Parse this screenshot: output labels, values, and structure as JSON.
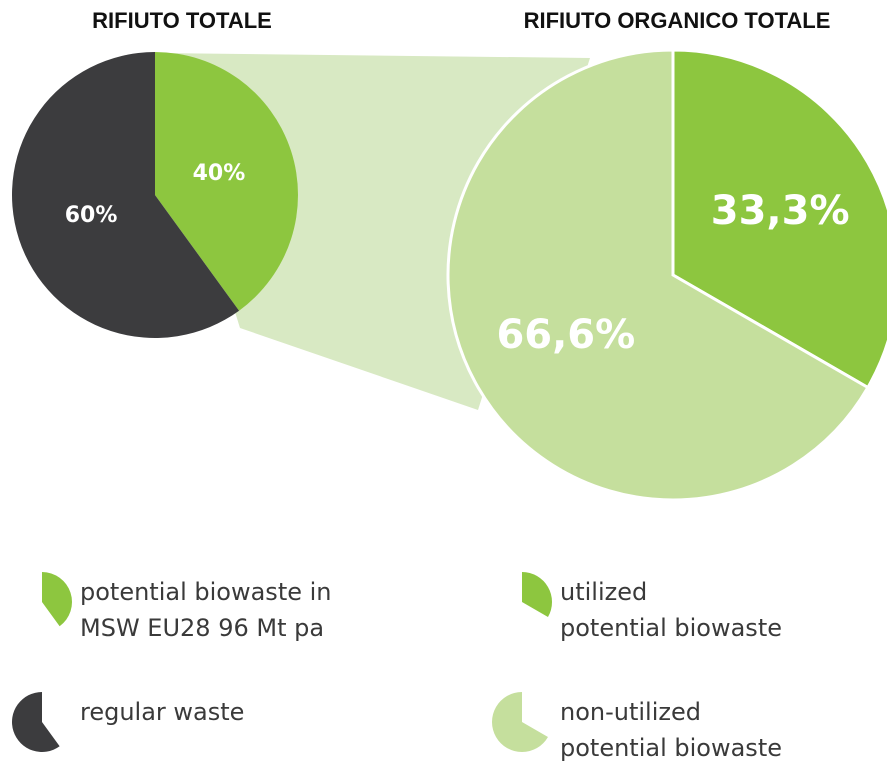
{
  "chart_data": [
    {
      "type": "pie",
      "title": "RIFIUTO TOTALE",
      "categories": [
        "potential biowaste in\nMSW EU28 96 Mt pa",
        "regular waste"
      ],
      "values": [
        40,
        60
      ],
      "value_labels": [
        "40%",
        "60%"
      ],
      "colors": [
        "#8dc63f",
        "#3c3c3e"
      ]
    },
    {
      "type": "pie",
      "title": "RIFIUTO ORGANICO TOTALE",
      "categories": [
        "utilized\npotential biowaste",
        "non-utilized\npotential biowaste"
      ],
      "values": [
        33.3,
        66.6
      ],
      "value_labels": [
        "33,3%",
        "66,6%"
      ],
      "colors": [
        "#8dc63f",
        "#c5df9d"
      ]
    }
  ]
}
